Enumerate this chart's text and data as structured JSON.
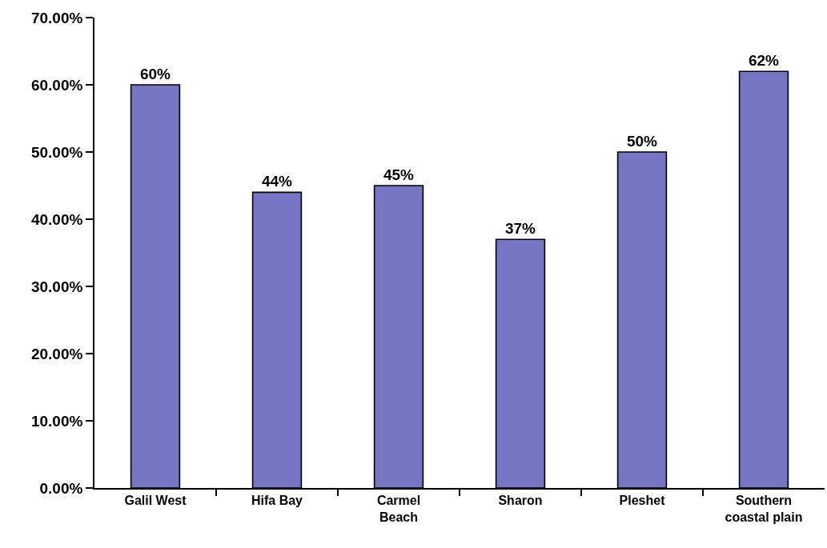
{
  "chart_data": {
    "type": "bar",
    "categories": [
      "Galil West",
      "Hifa Bay",
      "Carmel\nBeach",
      "Sharon",
      "Pleshet",
      "Southern\ncoastal plain"
    ],
    "values": [
      60,
      44,
      45,
      37,
      50,
      62
    ],
    "value_labels": [
      "60%",
      "44%",
      "45%",
      "37%",
      "50%",
      "62%"
    ],
    "color": "#7575c4",
    "ylim": [
      0,
      70
    ],
    "yticks": [
      {
        "value": 0,
        "label": "0.00%"
      },
      {
        "value": 10,
        "label": "10.00%"
      },
      {
        "value": 20,
        "label": "20.00%"
      },
      {
        "value": 30,
        "label": "30.00%"
      },
      {
        "value": 40,
        "label": "40.00%"
      },
      {
        "value": 50,
        "label": "50.00%"
      },
      {
        "value": 60,
        "label": "60.00%"
      },
      {
        "value": 70,
        "label": "70.00%"
      }
    ]
  }
}
